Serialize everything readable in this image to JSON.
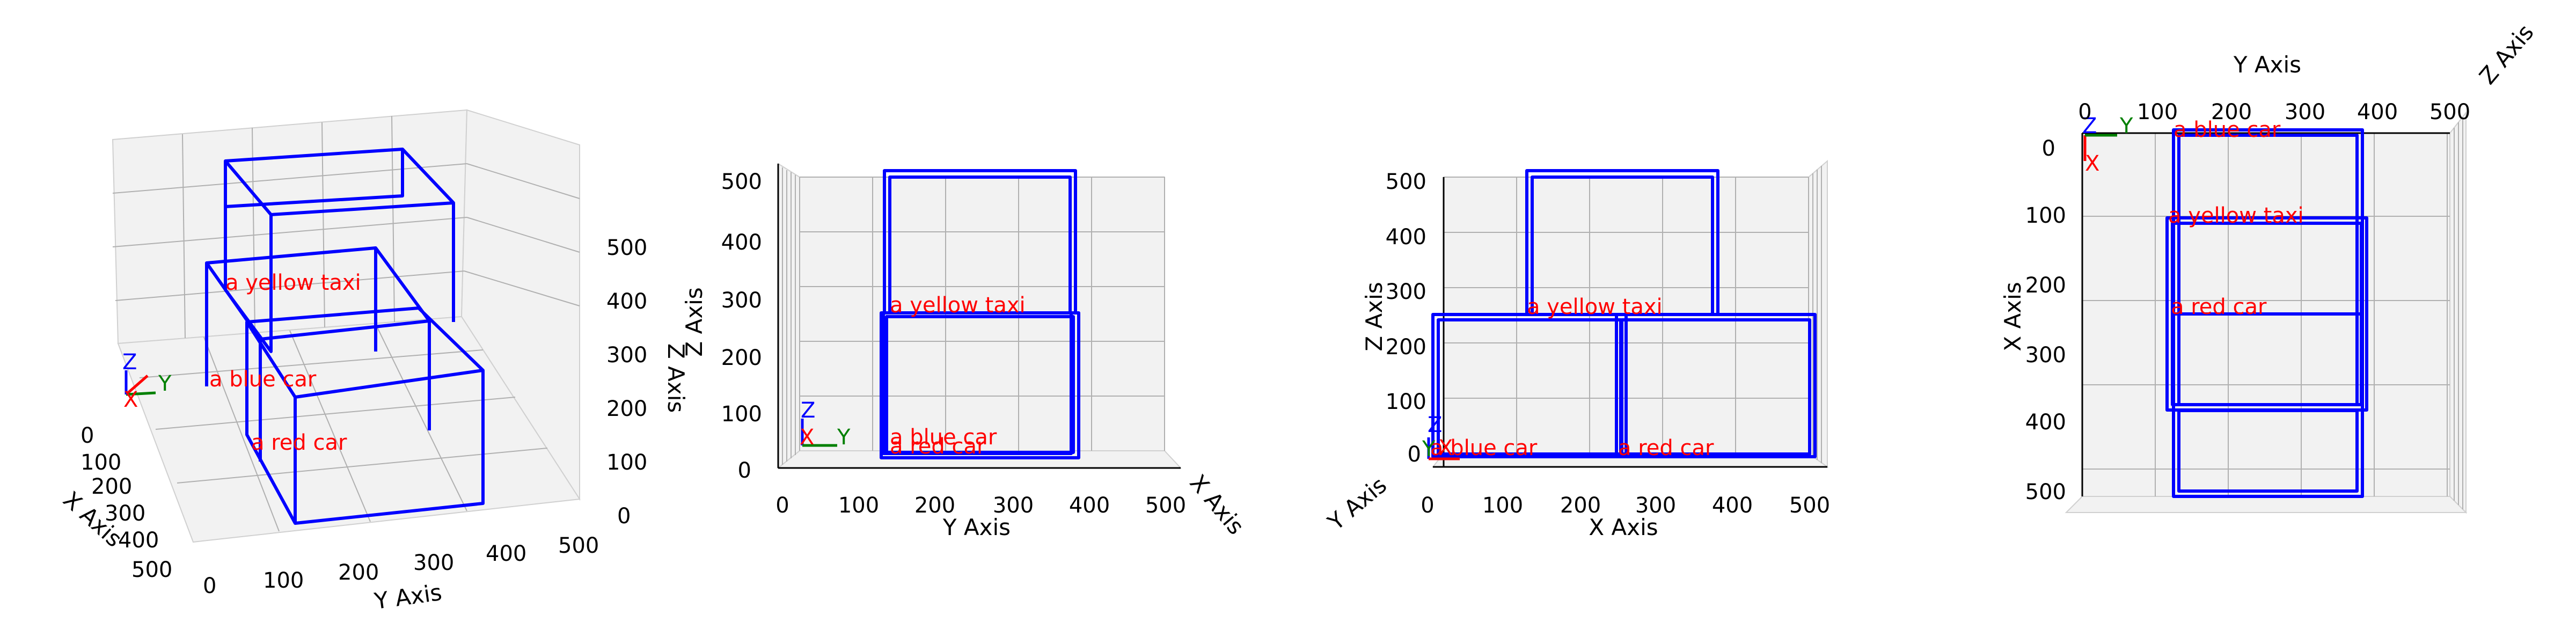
{
  "chart_data": [
    {
      "type": "3d-boxes",
      "view": "perspective",
      "xlabel": "X Axis",
      "ylabel": "Y Axis",
      "zlabel": "Z Axis",
      "xticks": [
        "0",
        "100",
        "200",
        "300",
        "400",
        "500"
      ],
      "yticks": [
        "0",
        "100",
        "200",
        "300",
        "400",
        "500"
      ],
      "zticks": [
        "0",
        "100",
        "200",
        "300",
        "400",
        "500"
      ],
      "objects": [
        {
          "label": "a yellow taxi"
        },
        {
          "label": "a blue car"
        },
        {
          "label": "a red car"
        }
      ],
      "gizmo": {
        "x": "X",
        "y": "Y",
        "z": "Z"
      }
    },
    {
      "type": "3d-boxes",
      "view": "front (Y-Z)",
      "xlabel": "Y Axis",
      "ylabel": "Z Axis",
      "depthlabel": "X Axis",
      "xticks": [
        "0",
        "100",
        "200",
        "300",
        "400",
        "500"
      ],
      "yticks": [
        "0",
        "100",
        "200",
        "300",
        "400",
        "500"
      ],
      "objects": [
        {
          "label": "a yellow taxi"
        },
        {
          "label": "a blue car"
        },
        {
          "label": "a red car"
        }
      ],
      "gizmo": {
        "x": "X",
        "y": "Y",
        "z": "Z"
      }
    },
    {
      "type": "3d-boxes",
      "view": "side (X-Z)",
      "xlabel": "X Axis",
      "ylabel": "Z Axis",
      "depthlabel": "Y Axis",
      "xticks": [
        "0",
        "100",
        "200",
        "300",
        "400",
        "500"
      ],
      "yticks": [
        "0",
        "100",
        "200",
        "300",
        "400",
        "500"
      ],
      "objects": [
        {
          "label": "a yellow taxi"
        },
        {
          "label": "a blue car"
        },
        {
          "label": "a red car"
        }
      ],
      "gizmo": {
        "x": "X",
        "y": "Y",
        "z": "Z"
      }
    },
    {
      "type": "3d-boxes",
      "view": "top (X-Y)",
      "xlabel": "Y Axis",
      "ylabel": "X Axis",
      "depthlabel": "Z Axis",
      "xticks": [
        "0",
        "100",
        "200",
        "300",
        "400",
        "500"
      ],
      "yticks": [
        "0",
        "100",
        "200",
        "300",
        "400",
        "500"
      ],
      "objects": [
        {
          "label": "a blue car"
        },
        {
          "label": "a yellow taxi"
        },
        {
          "label": "a red car"
        }
      ],
      "gizmo": {
        "x": "X",
        "y": "Y",
        "z": "Z"
      }
    }
  ]
}
